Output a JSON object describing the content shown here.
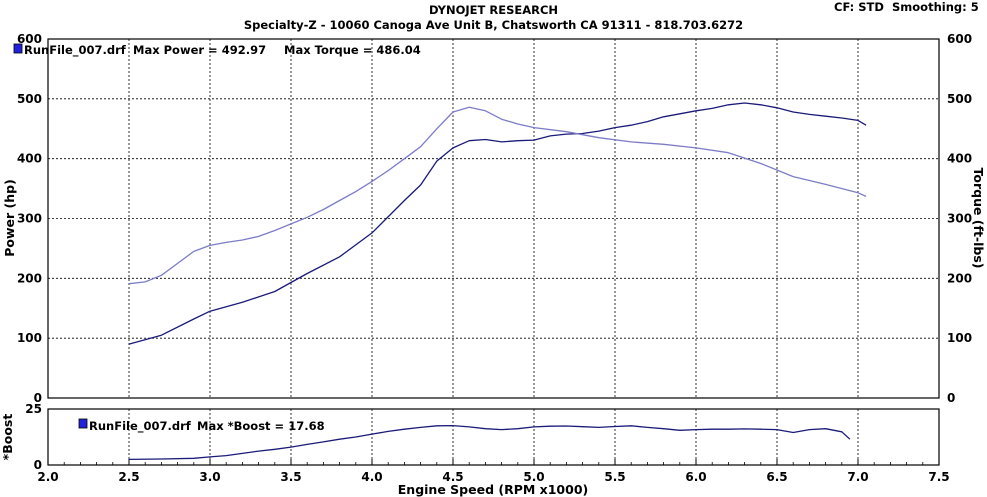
{
  "header": {
    "title": "DYNOJET RESEARCH",
    "subtitle": "Specialty-Z - 10060 Canoga Ave Unit B, Chatsworth CA 91311 - 818.703.6272",
    "cf_label": "CF: STD",
    "smoothing_label": "Smoothing: 5"
  },
  "chart_data": [
    {
      "type": "line",
      "title": "",
      "xlabel": "Engine Speed (RPM x1000)",
      "ylabel": "Power (hp)",
      "ylabel_right": "Torque (ft-lbs)",
      "xlim": [
        2.0,
        7.5
      ],
      "ylim": [
        0,
        600
      ],
      "xticks": [
        "2.0",
        "2.5",
        "3.0",
        "3.5",
        "4.0",
        "4.5",
        "5.0",
        "5.5",
        "6.0",
        "6.5",
        "7.0",
        "7.5"
      ],
      "yticks": [
        "0",
        "100",
        "200",
        "300",
        "400",
        "500",
        "600"
      ],
      "yticks_right": [
        "0",
        "100",
        "200",
        "300",
        "400",
        "500",
        "600"
      ],
      "grid": true,
      "legend": {
        "file": "RunFile_007.drf",
        "max_power_label": "Max Power = 492.97",
        "max_torque_label": "Max Torque = 486.04"
      },
      "series": [
        {
          "name": "Power",
          "color": "#1a1a7a",
          "x": [
            2.5,
            2.7,
            2.9,
            3.0,
            3.2,
            3.4,
            3.6,
            3.8,
            4.0,
            4.2,
            4.3,
            4.4,
            4.5,
            4.6,
            4.7,
            4.8,
            4.9,
            5.0,
            5.1,
            5.2,
            5.3,
            5.4,
            5.5,
            5.6,
            5.7,
            5.8,
            5.9,
            6.0,
            6.1,
            6.2,
            6.3,
            6.4,
            6.5,
            6.6,
            6.7,
            6.8,
            6.9,
            7.0,
            7.05
          ],
          "y": [
            90,
            105,
            132,
            145,
            160,
            178,
            208,
            236,
            276,
            330,
            356,
            396,
            418,
            430,
            432,
            428,
            430,
            431,
            438,
            441,
            442,
            446,
            452,
            456,
            462,
            470,
            475,
            480,
            484,
            490,
            493,
            490,
            485,
            478,
            474,
            471,
            468,
            464,
            456
          ]
        },
        {
          "name": "Torque",
          "color": "#7c7cc8",
          "x": [
            2.5,
            2.6,
            2.7,
            2.8,
            2.9,
            3.0,
            3.1,
            3.2,
            3.3,
            3.4,
            3.5,
            3.6,
            3.7,
            3.8,
            3.9,
            4.0,
            4.1,
            4.2,
            4.3,
            4.4,
            4.5,
            4.6,
            4.7,
            4.8,
            4.9,
            5.0,
            5.2,
            5.4,
            5.6,
            5.8,
            6.0,
            6.2,
            6.4,
            6.6,
            6.8,
            7.0,
            7.05
          ],
          "y": [
            191,
            194,
            205,
            225,
            245,
            255,
            260,
            264,
            270,
            280,
            291,
            302,
            315,
            330,
            345,
            362,
            380,
            400,
            420,
            450,
            478,
            486,
            480,
            466,
            458,
            452,
            445,
            435,
            428,
            424,
            418,
            410,
            392,
            370,
            357,
            343,
            337
          ]
        }
      ]
    },
    {
      "type": "line",
      "title": "",
      "xlabel": "Engine Speed (RPM x1000)",
      "ylabel": "*Boost",
      "xlim": [
        2.0,
        7.5
      ],
      "ylim": [
        0,
        25
      ],
      "yticks": [
        "0",
        "25"
      ],
      "grid": true,
      "legend": {
        "file": "RunFile_007.drf",
        "max_boost_label": "Max *Boost = 17.68"
      },
      "series": [
        {
          "name": "*Boost",
          "color": "#1a1a7a",
          "x": [
            2.5,
            2.7,
            2.9,
            3.0,
            3.1,
            3.2,
            3.3,
            3.4,
            3.5,
            3.6,
            3.7,
            3.8,
            3.9,
            4.0,
            4.1,
            4.2,
            4.3,
            4.4,
            4.5,
            4.6,
            4.7,
            4.8,
            4.9,
            5.0,
            5.1,
            5.2,
            5.3,
            5.4,
            5.5,
            5.6,
            5.7,
            5.8,
            5.9,
            6.0,
            6.1,
            6.2,
            6.3,
            6.4,
            6.5,
            6.6,
            6.7,
            6.8,
            6.9,
            6.95
          ],
          "y": [
            2.5,
            2.7,
            3.0,
            3.6,
            4.2,
            5.2,
            6.2,
            7.0,
            8.0,
            9.2,
            10.3,
            11.5,
            12.5,
            13.8,
            15.0,
            16.0,
            16.8,
            17.5,
            17.6,
            17.0,
            16.2,
            15.8,
            16.2,
            17.0,
            17.3,
            17.4,
            17.1,
            16.8,
            17.2,
            17.5,
            16.8,
            16.2,
            15.5,
            15.8,
            16.0,
            16.0,
            16.1,
            16.0,
            15.8,
            14.5,
            15.8,
            16.2,
            14.8,
            11.5
          ]
        }
      ]
    }
  ]
}
